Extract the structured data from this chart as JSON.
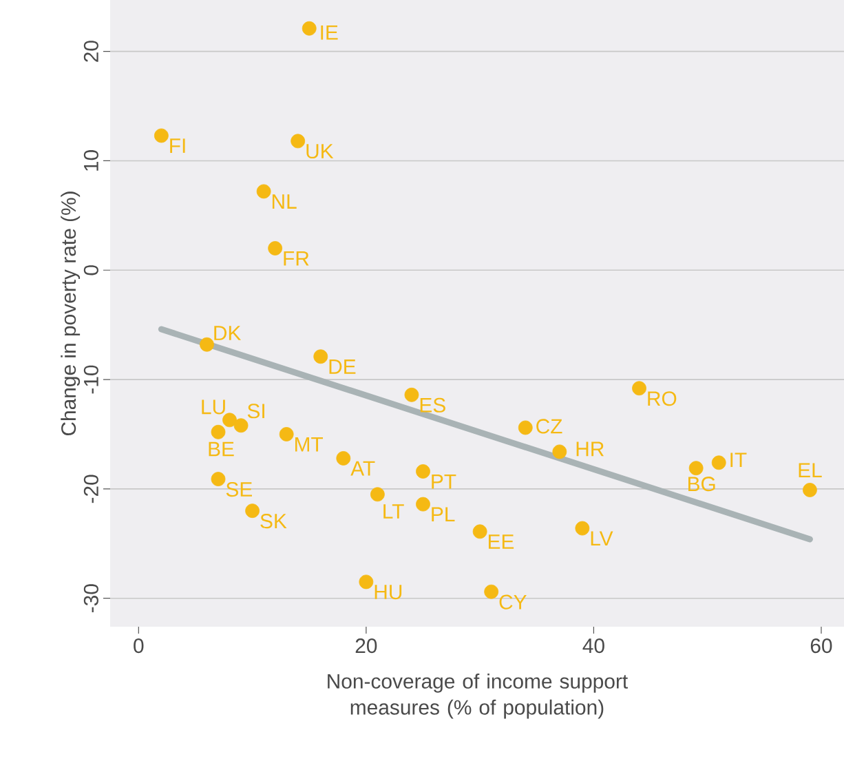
{
  "chart_data": {
    "type": "scatter",
    "xlabel": "Non-coverage of income support measures (% of population)",
    "ylabel": "Change in poverty rate (%)",
    "xlim": [
      -2.5,
      62
    ],
    "ylim": [
      -32.6,
      24.7
    ],
    "xticks": [
      0,
      20,
      40,
      60
    ],
    "yticks": [
      -30,
      -20,
      -10,
      0,
      10,
      20
    ],
    "grid": "y",
    "marker": "circle",
    "series": [
      {
        "type": "scatter",
        "color": "#f5b914",
        "x": [
          15,
          2,
          14,
          11,
          12,
          6,
          16,
          24,
          8,
          9,
          7,
          13,
          18,
          25,
          7,
          21,
          25,
          10,
          20,
          30,
          31,
          44,
          34,
          37,
          49,
          51,
          59,
          39
        ],
        "values": [
          22.1,
          12.3,
          11.8,
          7.2,
          2,
          -6.8,
          -7.9,
          -11.4,
          -13.7,
          -14.2,
          -14.8,
          -15,
          -17.2,
          -18.4,
          -19.1,
          -20.5,
          -21.4,
          -22,
          -28.5,
          -23.9,
          -29.4,
          -10.8,
          -14.4,
          -16.6,
          -18.1,
          -17.6,
          -20.1,
          -23.6
        ]
      },
      {
        "type": "line",
        "color": "#a9b3b5",
        "marker": "none",
        "x": [
          2,
          59
        ],
        "values": [
          -5.4,
          -24.6
        ]
      }
    ],
    "annotations": [
      {
        "text": "IE",
        "x": 15,
        "y": 22.1
      },
      {
        "text": "FI",
        "x": 2,
        "y": 12.3
      },
      {
        "text": "UK",
        "x": 14,
        "y": 11.8
      },
      {
        "text": "NL",
        "x": 11,
        "y": 7.2
      },
      {
        "text": "FR",
        "x": 12,
        "y": 2
      },
      {
        "text": "DK",
        "x": 6,
        "y": -6.8
      },
      {
        "text": "DE",
        "x": 16,
        "y": -7.9
      },
      {
        "text": "ES",
        "x": 24,
        "y": -11.4
      },
      {
        "text": "LU",
        "x": 8,
        "y": -13.7
      },
      {
        "text": "SI",
        "x": 9,
        "y": -14.2
      },
      {
        "text": "BE",
        "x": 7,
        "y": -14.8
      },
      {
        "text": "MT",
        "x": 13,
        "y": -15
      },
      {
        "text": "AT",
        "x": 18,
        "y": -17.2
      },
      {
        "text": "PT",
        "x": 25,
        "y": -18.4
      },
      {
        "text": "SE",
        "x": 7,
        "y": -19.1
      },
      {
        "text": "LT",
        "x": 21,
        "y": -20.5
      },
      {
        "text": "PL",
        "x": 25,
        "y": -21.4
      },
      {
        "text": "SK",
        "x": 10,
        "y": -22
      },
      {
        "text": "HU",
        "x": 20,
        "y": -28.5
      },
      {
        "text": "EE",
        "x": 30,
        "y": -23.9
      },
      {
        "text": "CY",
        "x": 31,
        "y": -29.4
      },
      {
        "text": "RO",
        "x": 44,
        "y": -10.8
      },
      {
        "text": "CZ",
        "x": 34,
        "y": -14.4
      },
      {
        "text": "HR",
        "x": 37,
        "y": -16.6
      },
      {
        "text": "BG",
        "x": 49,
        "y": -18.1
      },
      {
        "text": "IT",
        "x": 51,
        "y": -17.6
      },
      {
        "text": "EL",
        "x": 59,
        "y": -20.1
      },
      {
        "text": "LV",
        "x": 39,
        "y": -23.6
      }
    ]
  }
}
